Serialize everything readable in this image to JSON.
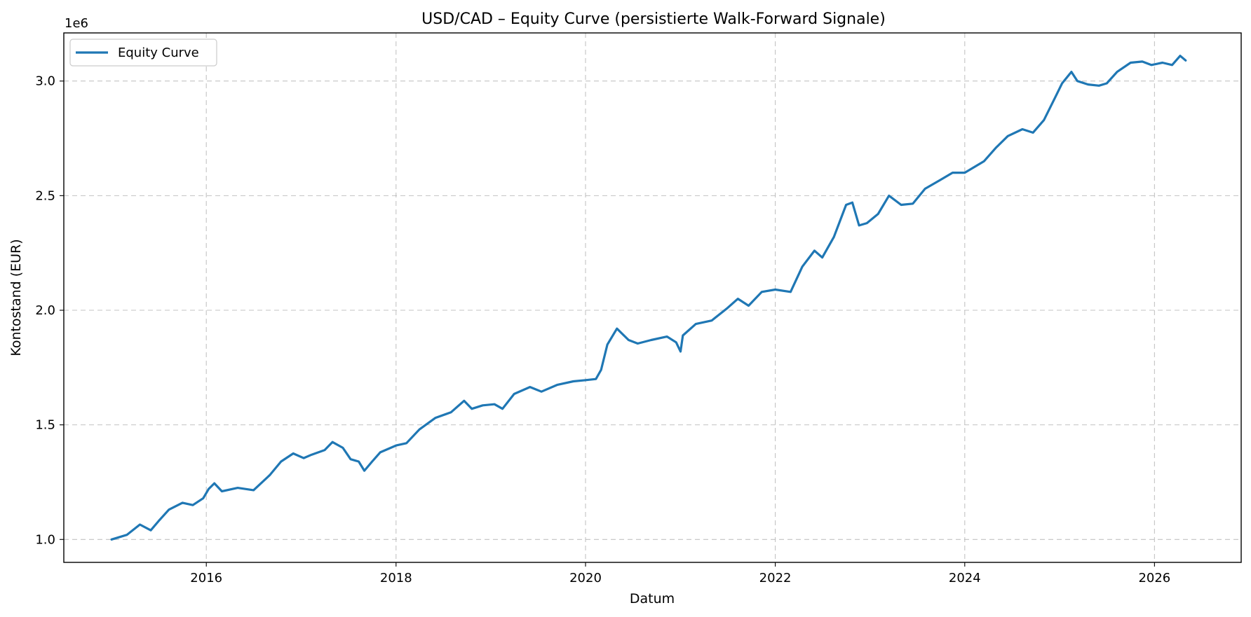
{
  "chart_data": {
    "type": "line",
    "title": "USD/CAD – Equity Curve (persistierte Walk-Forward Signale)",
    "xlabel": "Datum",
    "ylabel": "Kontostand (EUR)",
    "y_offset_label": "1e6",
    "y_scale": 1000000,
    "xlim": [
      "2014-07-01",
      "2026-12-01"
    ],
    "ylim": [
      0.9,
      3.21
    ],
    "x_ticks": [
      "2016",
      "2018",
      "2020",
      "2022",
      "2024",
      "2026"
    ],
    "y_ticks": [
      "1.0",
      "1.5",
      "2.0",
      "2.5",
      "3.0"
    ],
    "grid": true,
    "legend_position": "upper-left",
    "colors": {
      "series": "#1f77b4"
    },
    "series": [
      {
        "name": "Equity Curve",
        "color": "#1f77b4",
        "points": [
          [
            "2015-01-01",
            1.0
          ],
          [
            "2015-03-01",
            1.02
          ],
          [
            "2015-04-20",
            1.065
          ],
          [
            "2015-06-01",
            1.04
          ],
          [
            "2015-07-01",
            1.08
          ],
          [
            "2015-08-10",
            1.13
          ],
          [
            "2015-10-01",
            1.16
          ],
          [
            "2015-11-10",
            1.15
          ],
          [
            "2015-12-20",
            1.18
          ],
          [
            "2016-01-10",
            1.22
          ],
          [
            "2016-02-01",
            1.245
          ],
          [
            "2016-03-01",
            1.21
          ],
          [
            "2016-05-01",
            1.225
          ],
          [
            "2016-07-01",
            1.215
          ],
          [
            "2016-09-01",
            1.28
          ],
          [
            "2016-10-15",
            1.34
          ],
          [
            "2016-12-01",
            1.375
          ],
          [
            "2017-01-10",
            1.355
          ],
          [
            "2017-02-10",
            1.37
          ],
          [
            "2017-04-01",
            1.39
          ],
          [
            "2017-05-01",
            1.425
          ],
          [
            "2017-06-10",
            1.4
          ],
          [
            "2017-07-10",
            1.35
          ],
          [
            "2017-08-10",
            1.34
          ],
          [
            "2017-09-01",
            1.3
          ],
          [
            "2017-10-01",
            1.34
          ],
          [
            "2017-11-01",
            1.38
          ],
          [
            "2018-01-01",
            1.41
          ],
          [
            "2018-02-10",
            1.42
          ],
          [
            "2018-04-01",
            1.48
          ],
          [
            "2018-06-01",
            1.53
          ],
          [
            "2018-08-01",
            1.555
          ],
          [
            "2018-09-20",
            1.605
          ],
          [
            "2018-10-20",
            1.57
          ],
          [
            "2018-12-01",
            1.585
          ],
          [
            "2019-01-15",
            1.59
          ],
          [
            "2019-02-15",
            1.57
          ],
          [
            "2019-04-01",
            1.635
          ],
          [
            "2019-06-01",
            1.665
          ],
          [
            "2019-07-15",
            1.645
          ],
          [
            "2019-09-15",
            1.675
          ],
          [
            "2019-11-15",
            1.69
          ],
          [
            "2020-01-01",
            1.695
          ],
          [
            "2020-02-10",
            1.7
          ],
          [
            "2020-03-01",
            1.74
          ],
          [
            "2020-03-25",
            1.85
          ],
          [
            "2020-05-01",
            1.92
          ],
          [
            "2020-06-15",
            1.87
          ],
          [
            "2020-07-20",
            1.855
          ],
          [
            "2020-09-10",
            1.87
          ],
          [
            "2020-11-10",
            1.885
          ],
          [
            "2020-12-15",
            1.86
          ],
          [
            "2021-01-01",
            1.82
          ],
          [
            "2021-01-10",
            1.89
          ],
          [
            "2021-03-01",
            1.94
          ],
          [
            "2021-05-01",
            1.955
          ],
          [
            "2021-07-01",
            2.01
          ],
          [
            "2021-08-10",
            2.05
          ],
          [
            "2021-09-20",
            2.02
          ],
          [
            "2021-11-10",
            2.08
          ],
          [
            "2022-01-01",
            2.09
          ],
          [
            "2022-03-01",
            2.08
          ],
          [
            "2022-04-15",
            2.19
          ],
          [
            "2022-06-01",
            2.26
          ],
          [
            "2022-07-01",
            2.23
          ],
          [
            "2022-08-15",
            2.32
          ],
          [
            "2022-10-01",
            2.46
          ],
          [
            "2022-10-25",
            2.47
          ],
          [
            "2022-11-20",
            2.37
          ],
          [
            "2022-12-20",
            2.38
          ],
          [
            "2023-02-01",
            2.42
          ],
          [
            "2023-03-15",
            2.5
          ],
          [
            "2023-05-01",
            2.46
          ],
          [
            "2023-06-15",
            2.465
          ],
          [
            "2023-08-01",
            2.53
          ],
          [
            "2023-10-01",
            2.57
          ],
          [
            "2023-11-15",
            2.6
          ],
          [
            "2024-01-01",
            2.6
          ],
          [
            "2024-03-15",
            2.65
          ],
          [
            "2024-05-01",
            2.71
          ],
          [
            "2024-06-15",
            2.76
          ],
          [
            "2024-08-10",
            2.79
          ],
          [
            "2024-09-20",
            2.775
          ],
          [
            "2024-11-01",
            2.83
          ],
          [
            "2024-12-15",
            2.93
          ],
          [
            "2025-01-10",
            2.99
          ],
          [
            "2025-02-15",
            3.04
          ],
          [
            "2025-03-10",
            3.0
          ],
          [
            "2025-04-20",
            2.985
          ],
          [
            "2025-06-01",
            2.98
          ],
          [
            "2025-07-01",
            2.99
          ],
          [
            "2025-08-10",
            3.04
          ],
          [
            "2025-10-01",
            3.08
          ],
          [
            "2025-11-15",
            3.085
          ],
          [
            "2025-12-20",
            3.07
          ],
          [
            "2026-02-01",
            3.08
          ],
          [
            "2026-03-10",
            3.07
          ],
          [
            "2026-04-10",
            3.11
          ],
          [
            "2026-05-01",
            3.09
          ]
        ]
      }
    ]
  }
}
